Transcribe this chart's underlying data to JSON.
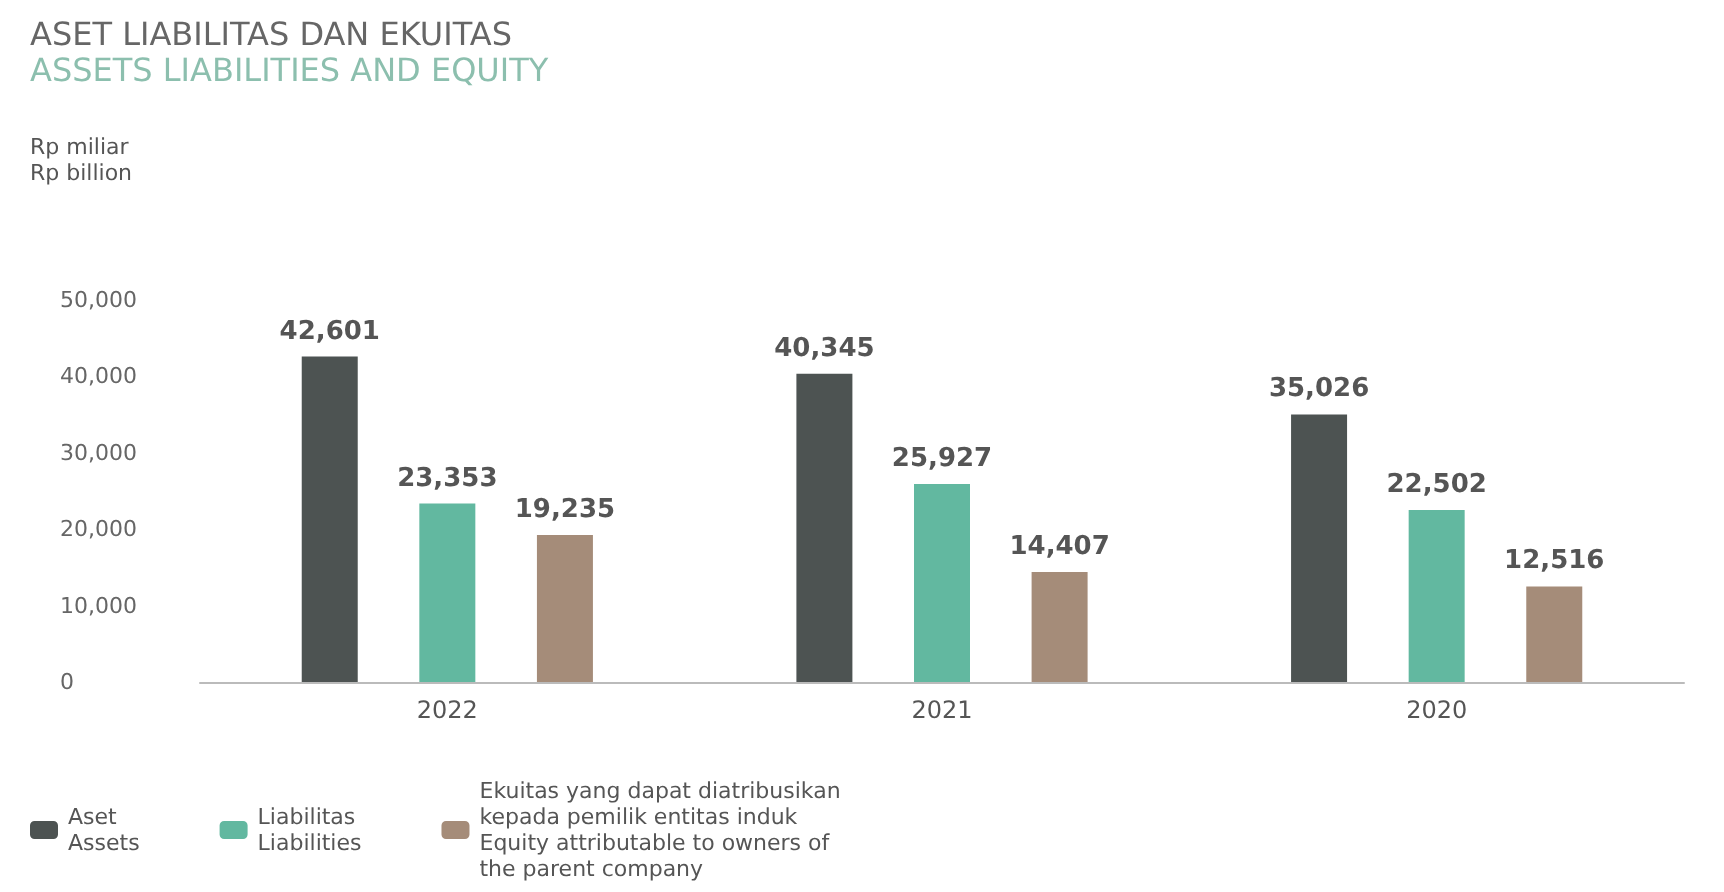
{
  "chart_data": {
    "type": "bar",
    "title": "ASET LIABILITAS DAN EKUITAS",
    "subtitle": "ASSETS LIABILITIES AND EQUITY",
    "ylabel": "Rp miliar\nRp billion",
    "categories": [
      "2022",
      "2021",
      "2020"
    ],
    "series": [
      {
        "name": "Aset\nAssets",
        "color": "#4d5352",
        "values": [
          42601,
          40345,
          35026
        ],
        "value_labels": [
          "42,601",
          "40,345",
          "35,026"
        ]
      },
      {
        "name": "Liabilitas\nLiabilities",
        "color": "#62b8a0",
        "values": [
          23353,
          25927,
          22502
        ],
        "value_labels": [
          "23,353",
          "25,927",
          "22,502"
        ]
      },
      {
        "name": "Ekuitas yang dapat diatribusikan\nkepada pemilik entitas induk\nEquity attributable to owners of\nthe parent company",
        "color": "#a58c79",
        "values": [
          19235,
          14407,
          12516
        ],
        "value_labels": [
          "19,235",
          "14,407",
          "12,516"
        ]
      }
    ],
    "ylim": [
      0,
      50000
    ],
    "yticks": [
      0,
      {
        "value": 10000,
        "label": "10,000"
      },
      {
        "value": 20000,
        "label": "20,000"
      },
      {
        "value": 30000,
        "label": "30,000"
      },
      {
        "value": 40000,
        "label": "40,000"
      },
      {
        "value": 50000,
        "label": "50,000"
      }
    ],
    "grid": false,
    "legend": "bottom"
  }
}
